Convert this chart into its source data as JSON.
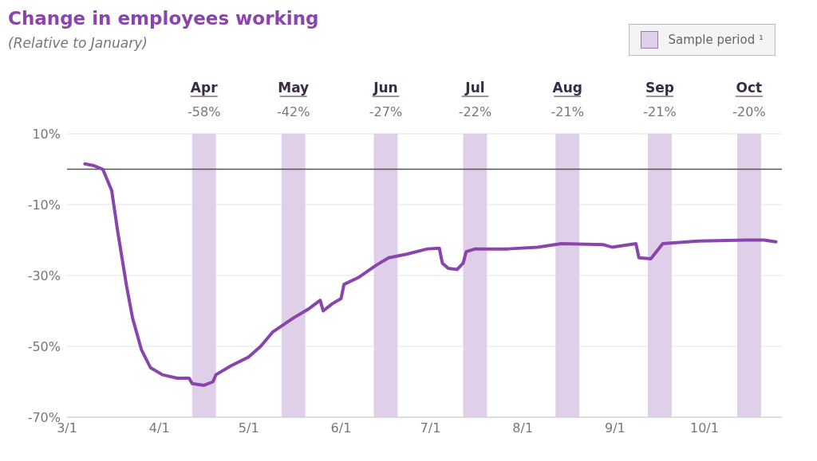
{
  "chart_data": {
    "type": "line",
    "title": "Change in employees working",
    "subtitle": "(Relative to January)",
    "legend_title": "Sample period ¹",
    "legend": "top right",
    "x": [
      "--03-07",
      "--03-10",
      "--03-13",
      "--03-16",
      "--03-18",
      "--03-21",
      "--03-23",
      "--03-26",
      "--03-29",
      "--04-02",
      "--04-07",
      "--04-11",
      "--04-12",
      "--04-16",
      "--04-19",
      "--04-20",
      "--04-25",
      "--05-01",
      "--05-05",
      "--05-09",
      "--05-16",
      "--05-21",
      "--05-25",
      "--05-26",
      "--05-29",
      "--06-01",
      "--06-02",
      "--06-07",
      "--06-13",
      "--06-17",
      "--06-23",
      "--06-30",
      "--07-04",
      "--07-05",
      "--07-07",
      "--07-10",
      "--07-12",
      "--07-13",
      "--07-16",
      "--07-27",
      "--08-06",
      "--08-14",
      "--08-28",
      "--08-31",
      "--09-08",
      "--09-09",
      "--09-13",
      "--09-17",
      "--09-29",
      "--10-15",
      "--10-21",
      "--10-25"
    ],
    "series": [
      {
        "color": "#8a45ad",
        "values": [
          1.5,
          1,
          0,
          -6,
          -17.5,
          -33,
          -42,
          -51,
          -56,
          -58,
          -59,
          -59,
          -60.5,
          -61,
          -60,
          -58,
          -55.5,
          -53,
          -50,
          -46,
          -42,
          -39.5,
          -37,
          -40,
          -38,
          -36.5,
          -32.5,
          -30.5,
          -27,
          -25,
          -24,
          -22.5,
          -22.3,
          -26.5,
          -28,
          -28.3,
          -26.5,
          -23.3,
          -22.5,
          -22.5,
          -22,
          -21,
          -21.3,
          -22,
          -21,
          -25,
          -25.3,
          -21,
          -20.3,
          -20,
          -20,
          -20.5
        ]
      }
    ],
    "xlim": [
      "--03-01",
      "--10-27"
    ],
    "xticks": [
      {
        "value": "--03-01",
        "label": "3/1"
      },
      {
        "value": "--04-01",
        "label": "4/1"
      },
      {
        "value": "--05-01",
        "label": "5/1"
      },
      {
        "value": "--06-01",
        "label": "6/1"
      },
      {
        "value": "--07-01",
        "label": "7/1"
      },
      {
        "value": "--08-01",
        "label": "8/1"
      },
      {
        "value": "--09-01",
        "label": "9/1"
      },
      {
        "value": "--10-01",
        "label": "10/1"
      }
    ],
    "ylim": [
      -70,
      10
    ],
    "yticks": [
      {
        "value": 10,
        "label": "10%"
      },
      {
        "value": -10,
        "label": "-10%"
      },
      {
        "value": -30,
        "label": "-30%"
      },
      {
        "value": -50,
        "label": "-50%"
      },
      {
        "value": -70,
        "label": "-70%"
      }
    ],
    "grid": "y",
    "marker": "none",
    "line_style": "solid",
    "ref_lines": [
      {
        "axis": "y",
        "value": 0,
        "color": "#555555"
      }
    ],
    "bands": [
      {
        "axis": "x",
        "from": "--04-12",
        "to": "--04-20",
        "label": "Apr",
        "color": "#e0cfe8"
      },
      {
        "axis": "x",
        "from": "--05-12",
        "to": "--05-20",
        "label": "May",
        "color": "#e0cfe8"
      },
      {
        "axis": "x",
        "from": "--06-12",
        "to": "--06-20",
        "label": "Jun",
        "color": "#e0cfe8"
      },
      {
        "axis": "x",
        "from": "--07-12",
        "to": "--07-20",
        "label": "Jul",
        "color": "#e0cfe8"
      },
      {
        "axis": "x",
        "from": "--08-12",
        "to": "--08-20",
        "label": "Aug",
        "color": "#e0cfe8"
      },
      {
        "axis": "x",
        "from": "--09-12",
        "to": "--09-20",
        "label": "Sep",
        "color": "#e0cfe8"
      },
      {
        "axis": "x",
        "from": "--10-12",
        "to": "--10-20",
        "label": "Oct",
        "color": "#e0cfe8"
      }
    ],
    "annotations": [
      "-58%",
      "-42%",
      "-27%",
      "-22%",
      "-21%",
      "-21%",
      "-20%"
    ]
  }
}
